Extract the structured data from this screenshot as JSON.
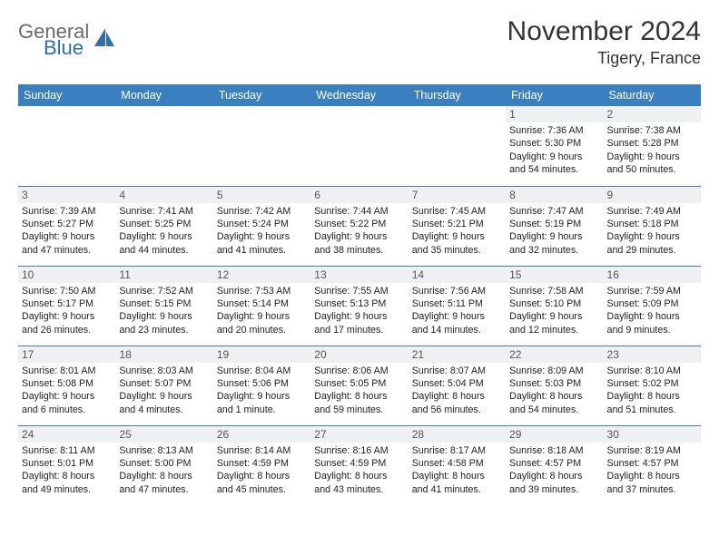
{
  "brand": {
    "top": "General",
    "bottom": "Blue"
  },
  "title": "November 2024",
  "location": "Tigery, France",
  "header_bg": "#3a7fc0",
  "header_fg": "#ffffff",
  "rule_color": "#3a7fc0",
  "daynum_bg": "#eef0f1",
  "weekdays": [
    "Sunday",
    "Monday",
    "Tuesday",
    "Wednesday",
    "Thursday",
    "Friday",
    "Saturday"
  ],
  "weeks": [
    [
      null,
      null,
      null,
      null,
      null,
      {
        "n": "1",
        "sr": "7:36 AM",
        "ss": "5:30 PM",
        "dl": "9 hours and 54 minutes."
      },
      {
        "n": "2",
        "sr": "7:38 AM",
        "ss": "5:28 PM",
        "dl": "9 hours and 50 minutes."
      }
    ],
    [
      {
        "n": "3",
        "sr": "7:39 AM",
        "ss": "5:27 PM",
        "dl": "9 hours and 47 minutes."
      },
      {
        "n": "4",
        "sr": "7:41 AM",
        "ss": "5:25 PM",
        "dl": "9 hours and 44 minutes."
      },
      {
        "n": "5",
        "sr": "7:42 AM",
        "ss": "5:24 PM",
        "dl": "9 hours and 41 minutes."
      },
      {
        "n": "6",
        "sr": "7:44 AM",
        "ss": "5:22 PM",
        "dl": "9 hours and 38 minutes."
      },
      {
        "n": "7",
        "sr": "7:45 AM",
        "ss": "5:21 PM",
        "dl": "9 hours and 35 minutes."
      },
      {
        "n": "8",
        "sr": "7:47 AM",
        "ss": "5:19 PM",
        "dl": "9 hours and 32 minutes."
      },
      {
        "n": "9",
        "sr": "7:49 AM",
        "ss": "5:18 PM",
        "dl": "9 hours and 29 minutes."
      }
    ],
    [
      {
        "n": "10",
        "sr": "7:50 AM",
        "ss": "5:17 PM",
        "dl": "9 hours and 26 minutes."
      },
      {
        "n": "11",
        "sr": "7:52 AM",
        "ss": "5:15 PM",
        "dl": "9 hours and 23 minutes."
      },
      {
        "n": "12",
        "sr": "7:53 AM",
        "ss": "5:14 PM",
        "dl": "9 hours and 20 minutes."
      },
      {
        "n": "13",
        "sr": "7:55 AM",
        "ss": "5:13 PM",
        "dl": "9 hours and 17 minutes."
      },
      {
        "n": "14",
        "sr": "7:56 AM",
        "ss": "5:11 PM",
        "dl": "9 hours and 14 minutes."
      },
      {
        "n": "15",
        "sr": "7:58 AM",
        "ss": "5:10 PM",
        "dl": "9 hours and 12 minutes."
      },
      {
        "n": "16",
        "sr": "7:59 AM",
        "ss": "5:09 PM",
        "dl": "9 hours and 9 minutes."
      }
    ],
    [
      {
        "n": "17",
        "sr": "8:01 AM",
        "ss": "5:08 PM",
        "dl": "9 hours and 6 minutes."
      },
      {
        "n": "18",
        "sr": "8:03 AM",
        "ss": "5:07 PM",
        "dl": "9 hours and 4 minutes."
      },
      {
        "n": "19",
        "sr": "8:04 AM",
        "ss": "5:06 PM",
        "dl": "9 hours and 1 minute."
      },
      {
        "n": "20",
        "sr": "8:06 AM",
        "ss": "5:05 PM",
        "dl": "8 hours and 59 minutes."
      },
      {
        "n": "21",
        "sr": "8:07 AM",
        "ss": "5:04 PM",
        "dl": "8 hours and 56 minutes."
      },
      {
        "n": "22",
        "sr": "8:09 AM",
        "ss": "5:03 PM",
        "dl": "8 hours and 54 minutes."
      },
      {
        "n": "23",
        "sr": "8:10 AM",
        "ss": "5:02 PM",
        "dl": "8 hours and 51 minutes."
      }
    ],
    [
      {
        "n": "24",
        "sr": "8:11 AM",
        "ss": "5:01 PM",
        "dl": "8 hours and 49 minutes."
      },
      {
        "n": "25",
        "sr": "8:13 AM",
        "ss": "5:00 PM",
        "dl": "8 hours and 47 minutes."
      },
      {
        "n": "26",
        "sr": "8:14 AM",
        "ss": "4:59 PM",
        "dl": "8 hours and 45 minutes."
      },
      {
        "n": "27",
        "sr": "8:16 AM",
        "ss": "4:59 PM",
        "dl": "8 hours and 43 minutes."
      },
      {
        "n": "28",
        "sr": "8:17 AM",
        "ss": "4:58 PM",
        "dl": "8 hours and 41 minutes."
      },
      {
        "n": "29",
        "sr": "8:18 AM",
        "ss": "4:57 PM",
        "dl": "8 hours and 39 minutes."
      },
      {
        "n": "30",
        "sr": "8:19 AM",
        "ss": "4:57 PM",
        "dl": "8 hours and 37 minutes."
      }
    ]
  ],
  "labels": {
    "sunrise": "Sunrise:",
    "sunset": "Sunset:",
    "daylight": "Daylight:"
  }
}
